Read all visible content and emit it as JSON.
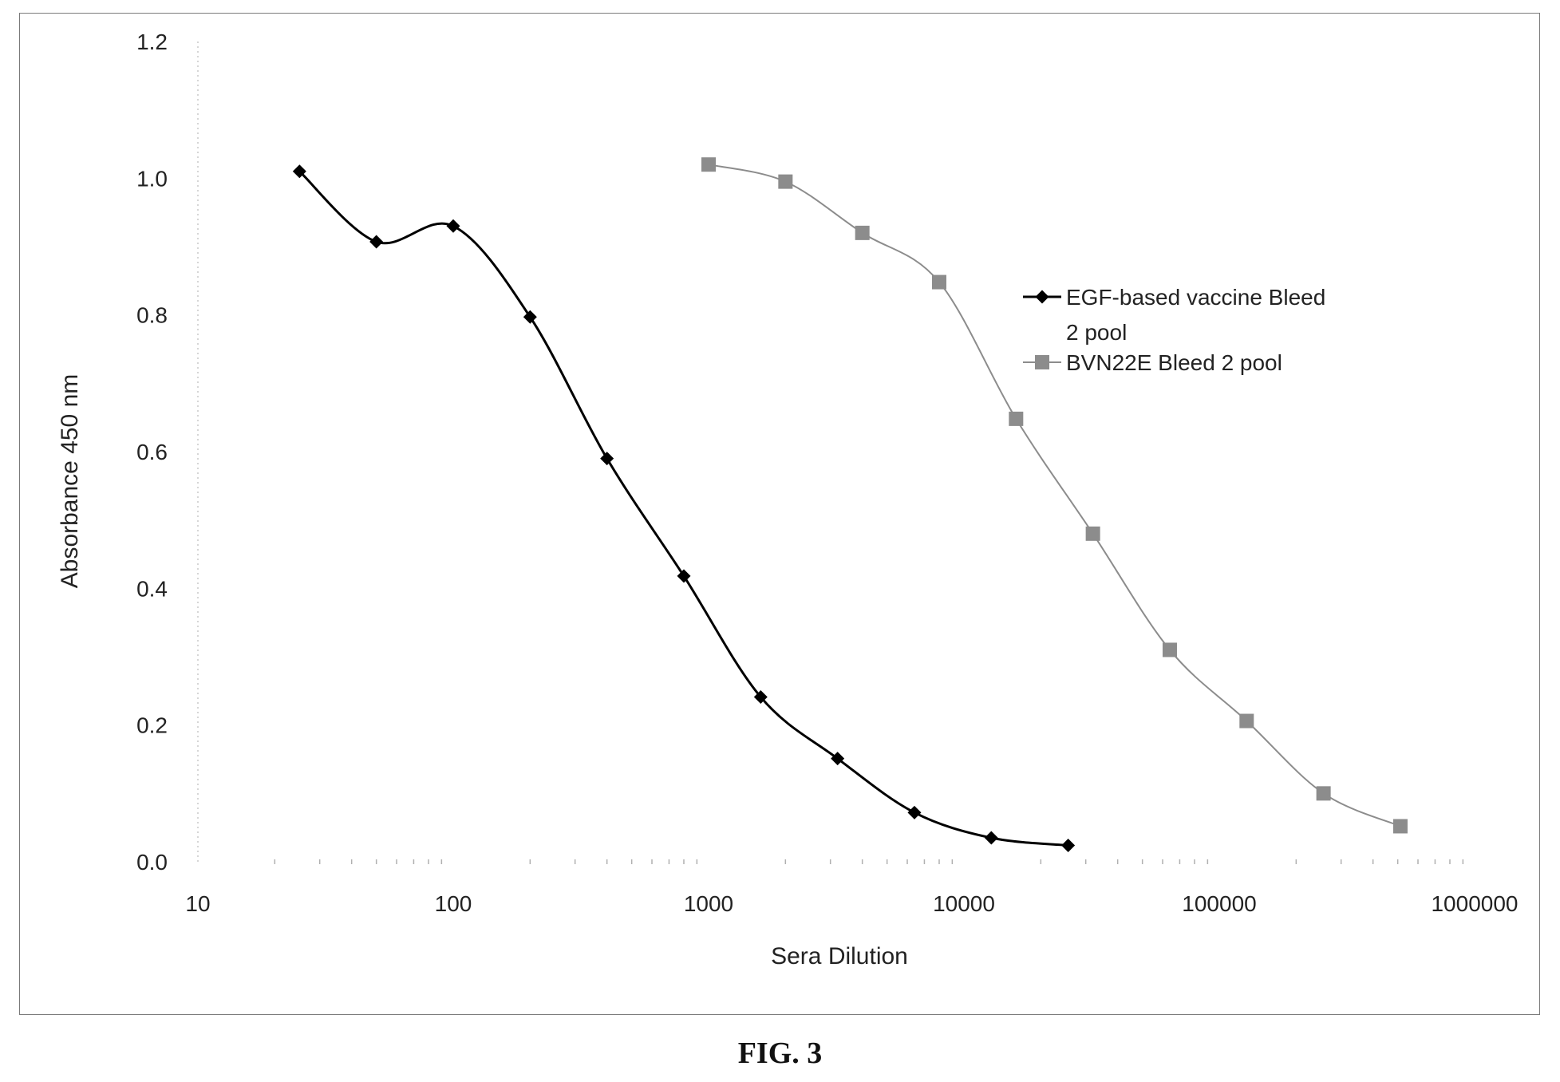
{
  "figure": {
    "caption": "FIG. 3"
  },
  "chart_data": {
    "type": "line",
    "xlabel": "Sera Dilution",
    "ylabel": "Absorbance 450 nm",
    "xscale": "log",
    "xlim": [
      10,
      1000000
    ],
    "ylim": [
      0,
      1.2
    ],
    "x_ticks": [
      "10",
      "100",
      "1000",
      "10000",
      "100000",
      "1000000"
    ],
    "y_ticks": [
      "0.0",
      "0.2",
      "0.4",
      "0.6",
      "0.8",
      "1.0",
      "1.2"
    ],
    "grid": false,
    "legend_position": "right",
    "series": [
      {
        "name": "EGF-based vaccine Bleed 2 pool",
        "legend_lines": [
          "EGF-based vaccine Bleed",
          "2 pool"
        ],
        "color": "#000000",
        "marker": "diamond",
        "x": [
          25,
          50,
          100,
          200,
          400,
          800,
          1600,
          3200,
          6400,
          12800,
          25600
        ],
        "y": [
          1.01,
          0.907,
          0.93,
          0.797,
          0.59,
          0.418,
          0.241,
          0.151,
          0.072,
          0.035,
          0.024
        ]
      },
      {
        "name": "BVN22E Bleed 2 pool",
        "legend_lines": [
          "BVN22E Bleed 2 pool"
        ],
        "color": "#8c8c8c",
        "marker": "square",
        "x": [
          1000,
          2000,
          4000,
          8000,
          16000,
          32000,
          64000,
          128000,
          256000,
          512000
        ],
        "y": [
          1.02,
          0.995,
          0.92,
          0.848,
          0.648,
          0.48,
          0.31,
          0.206,
          0.1,
          0.052
        ]
      }
    ]
  }
}
